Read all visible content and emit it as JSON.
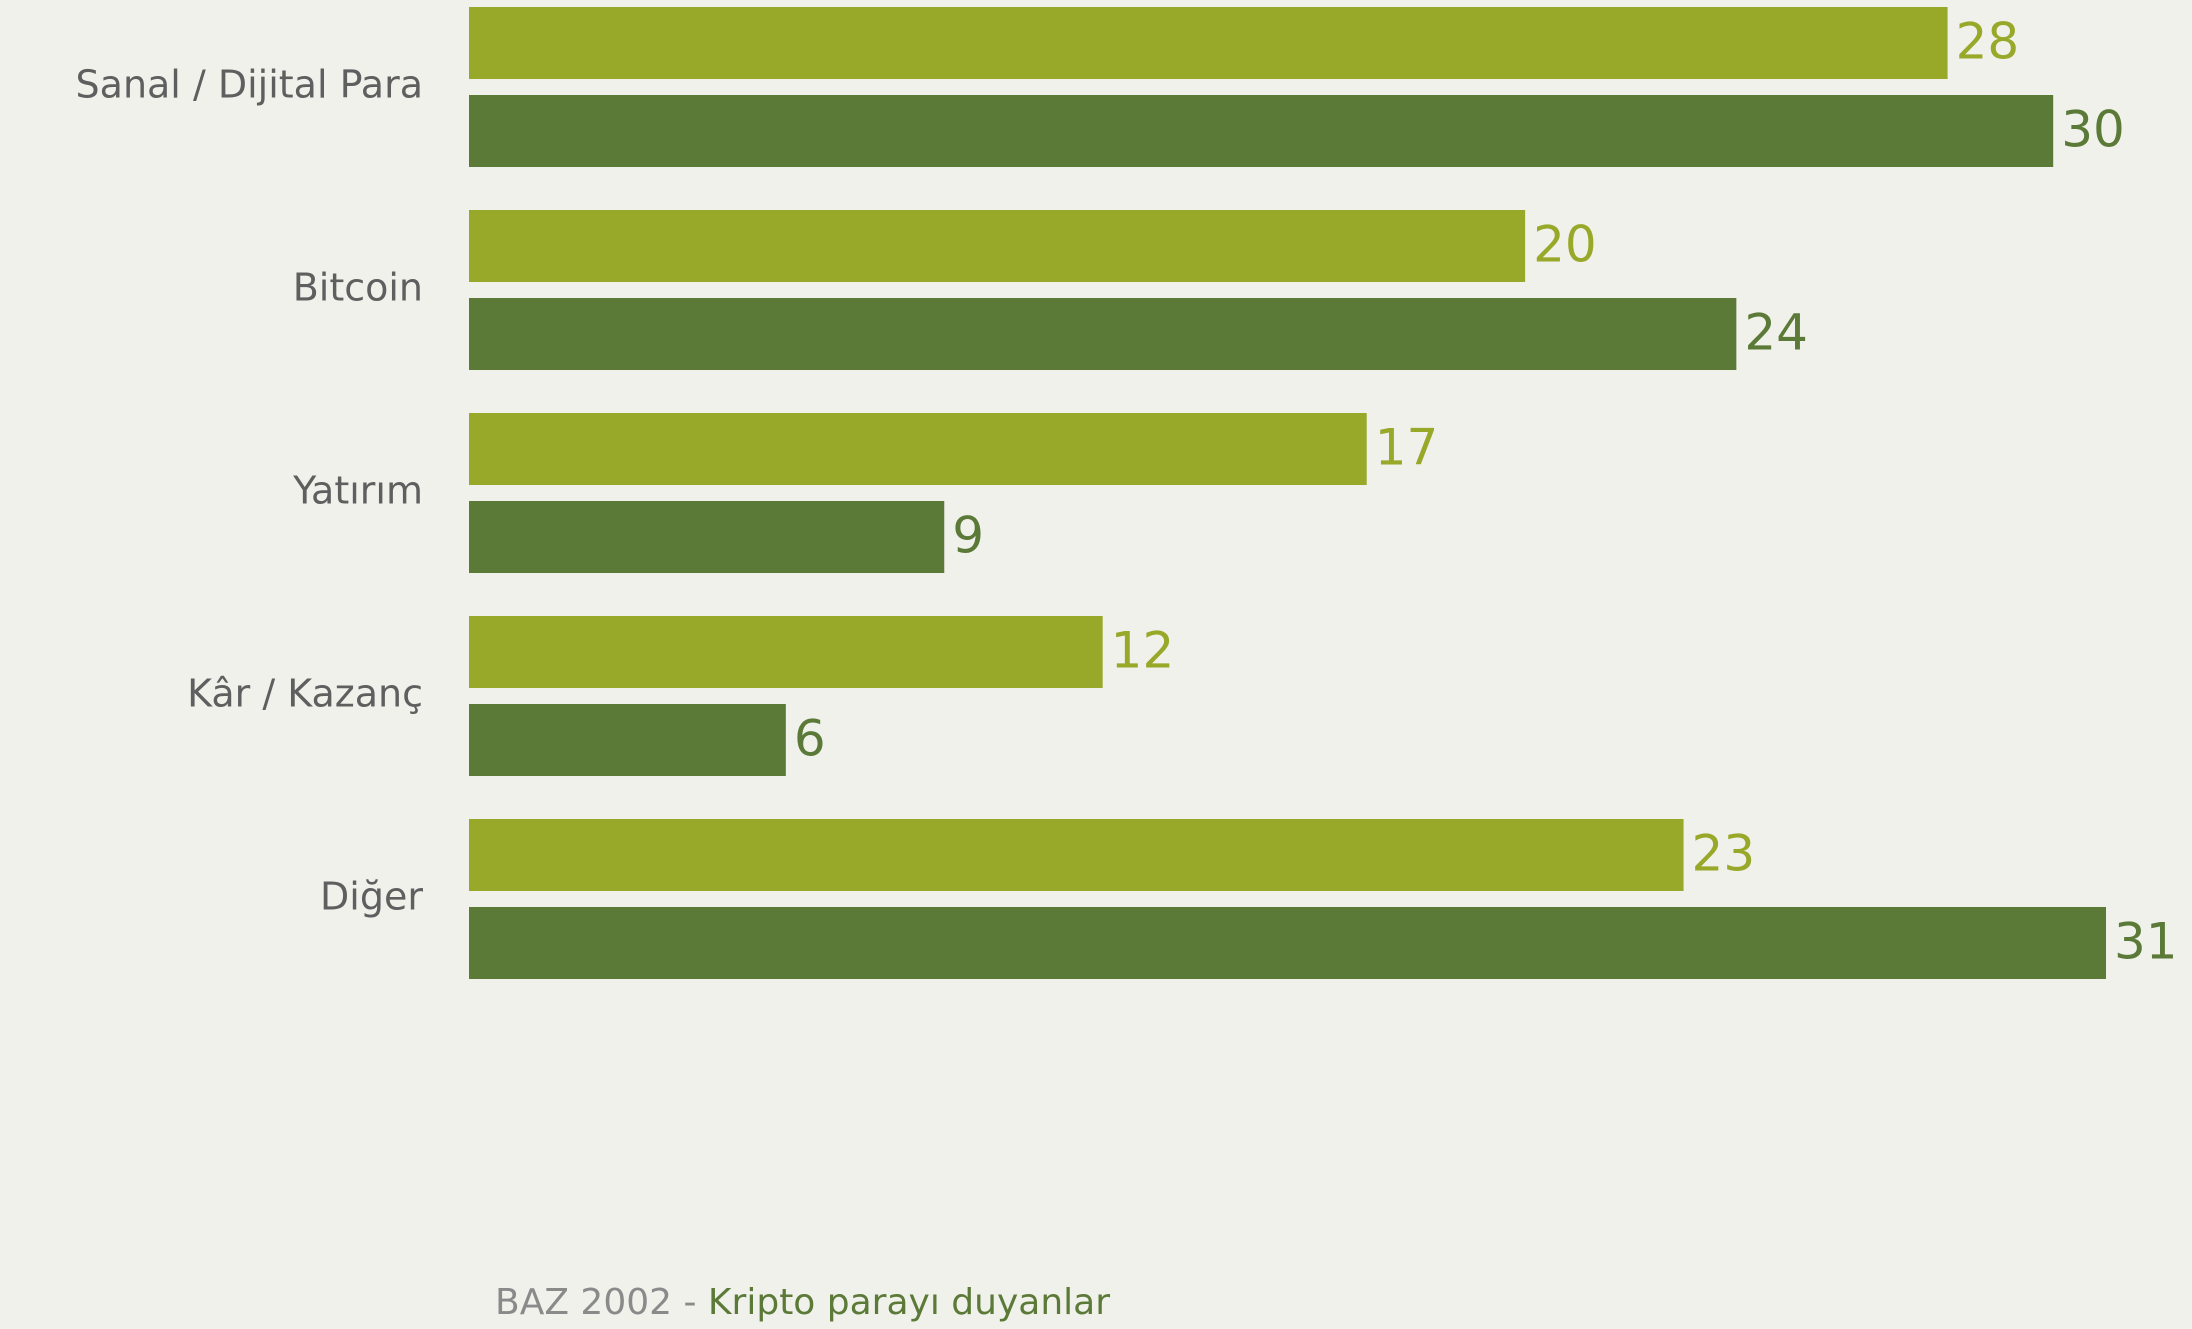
{
  "chart_data": {
    "type": "bar",
    "orientation": "horizontal",
    "categories": [
      "Sanal / Dijital Para",
      "Bitcoin",
      "Yatırım",
      "Kâr / Kazanç",
      "Diğer"
    ],
    "series": [
      {
        "values": [
          28,
          20,
          17,
          12,
          23
        ],
        "color": "#98a829"
      },
      {
        "values": [
          30,
          24,
          9,
          6,
          31
        ],
        "color": "#5b7a38"
      }
    ],
    "xlim": [
      0,
      31
    ],
    "grid": false,
    "legend": "none"
  },
  "footer": {
    "base": "BAZ 2002 -",
    "desc": " Kripto parayı duyanlar"
  }
}
